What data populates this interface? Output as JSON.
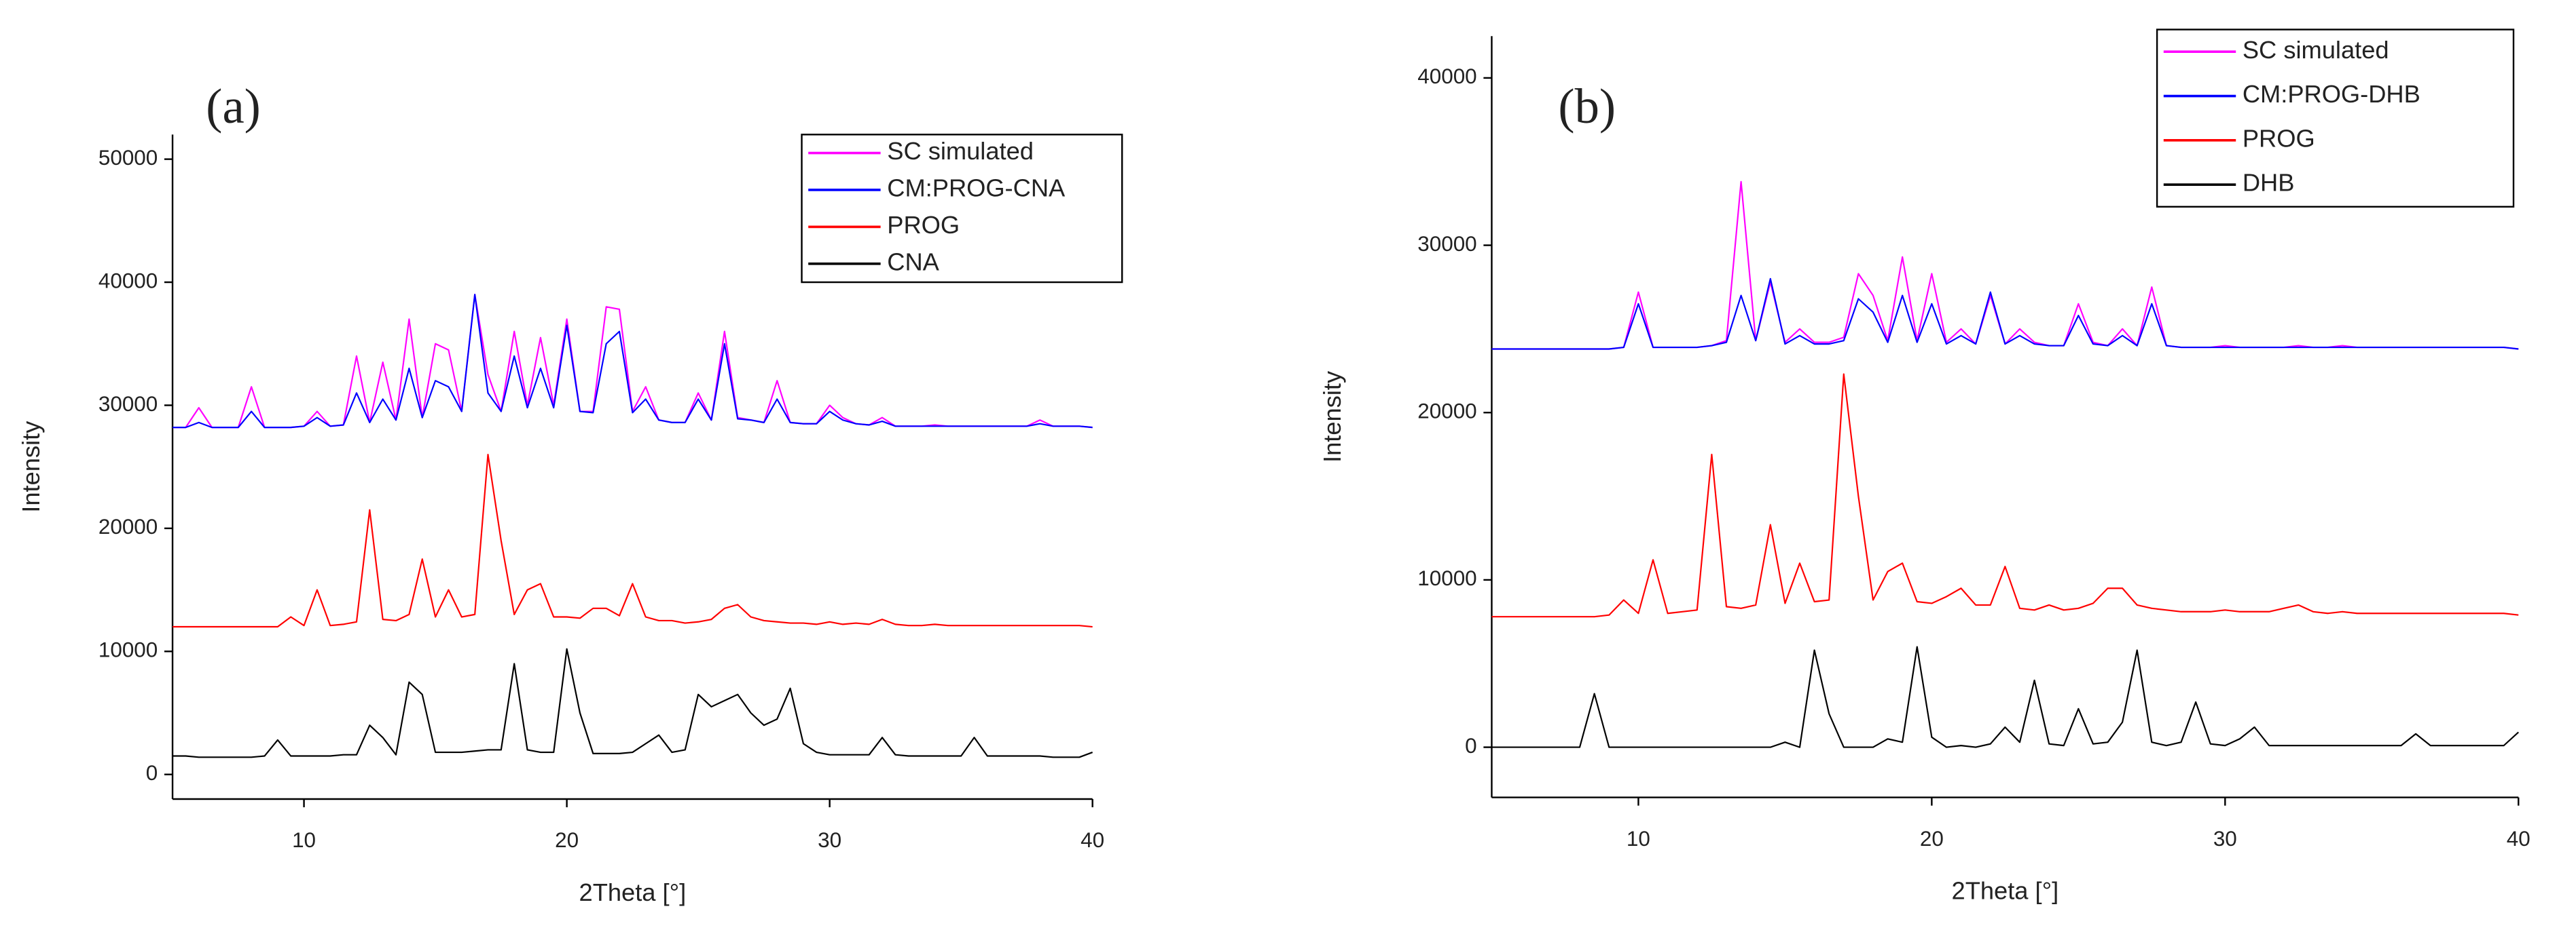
{
  "chart_data": [
    {
      "type": "line",
      "title": "(a)",
      "x_label": "2Theta [°]",
      "y_label": "Intensity",
      "x": [
        5,
        5.5,
        6,
        6.5,
        7,
        7.5,
        8,
        8.5,
        9,
        9.5,
        10,
        10.5,
        11,
        11.5,
        12,
        12.5,
        13,
        13.5,
        14,
        14.5,
        15,
        15.5,
        16,
        16.5,
        17,
        17.5,
        18,
        18.5,
        19,
        19.5,
        20,
        20.5,
        21,
        21.5,
        22,
        22.5,
        23,
        23.5,
        24,
        24.5,
        25,
        25.5,
        26,
        26.5,
        27,
        27.5,
        28,
        28.5,
        29,
        29.5,
        30,
        30.5,
        31,
        31.5,
        32,
        32.5,
        33,
        33.5,
        34,
        34.5,
        35,
        35.5,
        36,
        36.5,
        37,
        37.5,
        38,
        38.5,
        39,
        39.5,
        40
      ],
      "series": [
        {
          "name": "SC simulated",
          "color": "#ff00ff",
          "values": [
            28200,
            28200,
            29800,
            28200,
            28200,
            28200,
            31500,
            28200,
            28200,
            28200,
            28300,
            29500,
            28300,
            28400,
            34000,
            28600,
            33500,
            28800,
            37000,
            29000,
            35000,
            34500,
            29500,
            39000,
            32500,
            29500,
            36000,
            30000,
            35500,
            30000,
            37000,
            29500,
            29500,
            38000,
            37800,
            29500,
            31500,
            28800,
            28600,
            28600,
            31000,
            28800,
            36000,
            29000,
            28800,
            28600,
            32000,
            28600,
            28500,
            28500,
            30000,
            29000,
            28500,
            28400,
            29000,
            28300,
            28300,
            28300,
            28400,
            28300,
            28300,
            28300,
            28300,
            28300,
            28300,
            28300,
            28800,
            28300,
            28300,
            28300,
            28200
          ]
        },
        {
          "name": "CM:PROG-CNA",
          "color": "#0000ff",
          "values": [
            28200,
            28200,
            28600,
            28200,
            28200,
            28200,
            29500,
            28200,
            28200,
            28200,
            28300,
            29000,
            28300,
            28400,
            31000,
            28600,
            30500,
            28800,
            33000,
            29000,
            32000,
            31500,
            29500,
            39000,
            31000,
            29500,
            34000,
            29800,
            33000,
            29800,
            36500,
            29500,
            29400,
            35000,
            36000,
            29400,
            30500,
            28800,
            28600,
            28600,
            30500,
            28800,
            35000,
            28900,
            28800,
            28600,
            30500,
            28600,
            28500,
            28500,
            29500,
            28800,
            28500,
            28400,
            28700,
            28300,
            28300,
            28300,
            28300,
            28300,
            28300,
            28300,
            28300,
            28300,
            28300,
            28300,
            28500,
            28300,
            28300,
            28300,
            28200
          ]
        },
        {
          "name": "PROG",
          "color": "#ff0000",
          "values": [
            12000,
            12000,
            12000,
            12000,
            12000,
            12000,
            12000,
            12000,
            12000,
            12800,
            12100,
            15000,
            12100,
            12200,
            12400,
            21500,
            12600,
            12500,
            13000,
            17500,
            12800,
            15000,
            12800,
            13000,
            26000,
            19000,
            13000,
            15000,
            15500,
            12800,
            12800,
            12700,
            13500,
            13500,
            12900,
            15500,
            12800,
            12500,
            12500,
            12300,
            12400,
            12600,
            13500,
            13800,
            12800,
            12500,
            12400,
            12300,
            12300,
            12200,
            12400,
            12200,
            12300,
            12200,
            12600,
            12200,
            12100,
            12100,
            12200,
            12100,
            12100,
            12100,
            12100,
            12100,
            12100,
            12100,
            12100,
            12100,
            12100,
            12100,
            12000
          ]
        },
        {
          "name": "CNA",
          "color": "#000000",
          "values": [
            1500,
            1500,
            1400,
            1400,
            1400,
            1400,
            1400,
            1500,
            2800,
            1500,
            1500,
            1500,
            1500,
            1600,
            1600,
            4000,
            3000,
            1600,
            7500,
            6500,
            1800,
            1800,
            1800,
            1900,
            2000,
            2000,
            9000,
            2000,
            1800,
            1800,
            10200,
            5000,
            1700,
            1700,
            1700,
            1800,
            2500,
            3200,
            1800,
            2000,
            6500,
            5500,
            6000,
            6500,
            5000,
            4000,
            4500,
            7000,
            2500,
            1800,
            1600,
            1600,
            1600,
            1600,
            3000,
            1600,
            1500,
            1500,
            1500,
            1500,
            1500,
            3000,
            1500,
            1500,
            1500,
            1500,
            1500,
            1400,
            1400,
            1400,
            1800
          ]
        }
      ],
      "xlim": [
        5,
        40
      ],
      "ylim": [
        -2000,
        52000
      ],
      "xticks": [
        10,
        20,
        30,
        40
      ],
      "yticks": [
        0,
        10000,
        20000,
        30000,
        40000,
        50000
      ],
      "legend_position": "upper right"
    },
    {
      "type": "line",
      "title": "(b)",
      "x_label": "2Theta [°]",
      "y_label": "Intensity",
      "x": [
        5,
        5.5,
        6,
        6.5,
        7,
        7.5,
        8,
        8.5,
        9,
        9.5,
        10,
        10.5,
        11,
        11.5,
        12,
        12.5,
        13,
        13.5,
        14,
        14.5,
        15,
        15.5,
        16,
        16.5,
        17,
        17.5,
        18,
        18.5,
        19,
        19.5,
        20,
        20.5,
        21,
        21.5,
        22,
        22.5,
        23,
        23.5,
        24,
        24.5,
        25,
        25.5,
        26,
        26.5,
        27,
        27.5,
        28,
        28.5,
        29,
        29.5,
        30,
        30.5,
        31,
        31.5,
        32,
        32.5,
        33,
        33.5,
        34,
        34.5,
        35,
        35.5,
        36,
        36.5,
        37,
        37.5,
        38,
        38.5,
        39,
        39.5,
        40
      ],
      "series": [
        {
          "name": "SC simulated",
          "color": "#ff00ff",
          "values": [
            23800,
            23800,
            23800,
            23800,
            23800,
            23800,
            23800,
            23800,
            23800,
            23900,
            27200,
            23900,
            23900,
            23900,
            23900,
            24000,
            24300,
            33800,
            24300,
            27800,
            24200,
            25000,
            24200,
            24200,
            24500,
            28300,
            27000,
            24300,
            29300,
            24300,
            28300,
            24200,
            25000,
            24100,
            27000,
            24100,
            25000,
            24200,
            24000,
            24000,
            26500,
            24200,
            24000,
            25000,
            24000,
            27500,
            24000,
            23900,
            23900,
            23900,
            24000,
            23900,
            23900,
            23900,
            23900,
            24000,
            23900,
            23900,
            24000,
            23900,
            23900,
            23900,
            23900,
            23900,
            23900,
            23900,
            23900,
            23900,
            23900,
            23900,
            23800
          ]
        },
        {
          "name": "CM:PROG-DHB",
          "color": "#0000ff",
          "values": [
            23800,
            23800,
            23800,
            23800,
            23800,
            23800,
            23800,
            23800,
            23800,
            23900,
            26500,
            23900,
            23900,
            23900,
            23900,
            24000,
            24200,
            27000,
            24300,
            28000,
            24100,
            24600,
            24100,
            24100,
            24300,
            26800,
            26000,
            24200,
            27000,
            24200,
            26500,
            24100,
            24600,
            24100,
            27200,
            24100,
            24600,
            24100,
            24000,
            24000,
            25800,
            24100,
            24000,
            24600,
            24000,
            26500,
            24000,
            23900,
            23900,
            23900,
            23900,
            23900,
            23900,
            23900,
            23900,
            23900,
            23900,
            23900,
            23900,
            23900,
            23900,
            23900,
            23900,
            23900,
            23900,
            23900,
            23900,
            23900,
            23900,
            23900,
            23800
          ]
        },
        {
          "name": "PROG",
          "color": "#ff0000",
          "values": [
            7800,
            7800,
            7800,
            7800,
            7800,
            7800,
            7800,
            7800,
            7900,
            8800,
            8000,
            11200,
            8000,
            8100,
            8200,
            17500,
            8400,
            8300,
            8500,
            13300,
            8600,
            11000,
            8700,
            8800,
            22300,
            15000,
            8800,
            10500,
            11000,
            8700,
            8600,
            9000,
            9500,
            8500,
            8500,
            10800,
            8300,
            8200,
            8500,
            8200,
            8300,
            8600,
            9500,
            9500,
            8500,
            8300,
            8200,
            8100,
            8100,
            8100,
            8200,
            8100,
            8100,
            8100,
            8300,
            8500,
            8100,
            8000,
            8100,
            8000,
            8000,
            8000,
            8000,
            8000,
            8000,
            8000,
            8000,
            8000,
            8000,
            8000,
            7900
          ]
        },
        {
          "name": "DHB",
          "color": "#000000",
          "values": [
            0,
            0,
            0,
            0,
            0,
            0,
            0,
            3200,
            0,
            0,
            0,
            0,
            0,
            0,
            0,
            0,
            0,
            0,
            0,
            0,
            300,
            0,
            5800,
            2000,
            0,
            0,
            0,
            500,
            300,
            6000,
            600,
            0,
            100,
            0,
            200,
            1200,
            300,
            4000,
            200,
            100,
            2300,
            200,
            300,
            1500,
            5800,
            300,
            100,
            300,
            2700,
            200,
            100,
            500,
            1200,
            100,
            100,
            100,
            100,
            100,
            100,
            100,
            100,
            100,
            100,
            800,
            100,
            100,
            100,
            100,
            100,
            100,
            900
          ]
        }
      ],
      "xlim": [
        5,
        40
      ],
      "ylim": [
        -3000,
        42500
      ],
      "xticks": [
        10,
        20,
        30,
        40
      ],
      "yticks": [
        0,
        10000,
        20000,
        30000,
        40000
      ],
      "legend_position": "upper right"
    }
  ]
}
